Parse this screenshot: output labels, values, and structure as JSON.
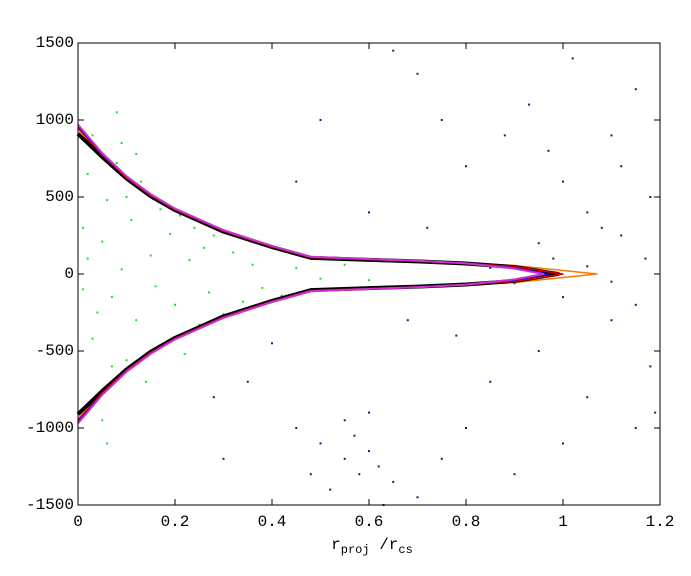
{
  "chart_data": {
    "type": "scatter",
    "x_label": [
      "r",
      "proj",
      " /r",
      "cs"
    ],
    "xlim": [
      0,
      1.2
    ],
    "xticks": [
      0,
      0.2,
      0.4,
      0.6,
      0.8,
      1,
      1.2
    ],
    "ylim": [
      -1500,
      1500
    ],
    "yticks": [
      -1500,
      -1000,
      -500,
      0,
      500,
      1000,
      1500
    ],
    "series": [
      {
        "type": "scatter",
        "color": "#22dd22",
        "x": [
          0.02,
          0.03,
          0.05,
          0.04,
          0.06,
          0.07,
          0.08,
          0.09,
          0.1,
          0.11,
          0.12,
          0.13,
          0.14,
          0.15,
          0.16,
          0.17,
          0.18,
          0.19,
          0.2,
          0.21,
          0.22,
          0.23,
          0.24,
          0.25,
          0.26,
          0.27,
          0.28,
          0.3,
          0.32,
          0.34,
          0.36,
          0.38,
          0.4,
          0.42,
          0.45,
          0.5,
          0.55,
          0.6,
          0.01,
          0.02,
          0.03,
          0.05,
          0.07,
          0.09,
          0.12,
          0.01,
          0.04,
          0.06,
          0.08,
          0.1
        ],
        "values": [
          650,
          -420,
          210,
          -800,
          480,
          -150,
          720,
          30,
          -560,
          350,
          -300,
          600,
          -700,
          120,
          -80,
          420,
          -450,
          260,
          -200,
          380,
          -520,
          90,
          300,
          -330,
          170,
          -120,
          250,
          -260,
          140,
          -180,
          60,
          -90,
          170,
          -140,
          40,
          -30,
          60,
          -40,
          -100,
          100,
          900,
          -950,
          -600,
          850,
          780,
          300,
          -250,
          -1100,
          1050,
          500
        ]
      },
      {
        "type": "scatter",
        "color": "#1a1a80",
        "x": [
          0.55,
          0.58,
          0.6,
          0.52,
          0.62,
          0.57,
          0.65,
          0.5,
          0.7,
          0.48,
          0.6,
          0.63,
          0.55,
          0.45,
          0.75,
          0.8,
          0.85,
          0.9,
          0.95,
          1.0,
          1.05,
          1.1,
          1.15,
          1.18,
          0.35,
          0.4,
          0.3,
          0.28,
          0.95,
          1.0,
          0.98,
          1.05,
          1.1,
          1.12,
          1.15,
          0.9,
          0.85,
          1.0,
          1.05,
          1.1,
          1.15,
          1.08,
          0.97,
          0.93,
          0.88,
          1.18,
          1.12,
          1.02,
          0.8,
          0.75,
          0.7,
          0.65,
          0.6,
          0.45,
          0.5,
          0.72,
          0.68,
          0.78,
          1.19,
          1.17
        ],
        "values": [
          -1200,
          -1300,
          -1150,
          -1400,
          -1250,
          -1050,
          -1350,
          -1100,
          -1450,
          -1300,
          -900,
          -1500,
          -950,
          -1000,
          -1200,
          -1000,
          -700,
          -1300,
          -500,
          -1100,
          -800,
          -300,
          -1000,
          -600,
          -700,
          -450,
          -1200,
          -800,
          200,
          -150,
          100,
          50,
          -50,
          250,
          -200,
          -60,
          40,
          600,
          400,
          900,
          1200,
          300,
          800,
          1100,
          900,
          500,
          700,
          1400,
          700,
          1000,
          1300,
          1450,
          400,
          600,
          1000,
          300,
          -300,
          -400,
          -900,
          100
        ]
      },
      {
        "type": "line",
        "color": "#ff7700",
        "width": 1.5,
        "x": [
          0,
          0.05,
          0.1,
          0.15,
          0.2,
          0.3,
          0.4,
          0.48,
          0.6,
          0.7,
          0.8,
          0.9,
          1.07,
          0.9,
          0.8,
          0.7,
          0.6,
          0.48,
          0.4,
          0.3,
          0.2,
          0.15,
          0.1,
          0.05,
          0
        ],
        "values": [
          940,
          775,
          628,
          512,
          420,
          280,
          178,
          108,
          95,
          86,
          72,
          55,
          0,
          -55,
          -72,
          -86,
          -95,
          -108,
          -178,
          -280,
          -420,
          -512,
          -628,
          -775,
          -940
        ]
      },
      {
        "type": "line",
        "color": "#000000",
        "width": 4,
        "x": [
          0,
          0.05,
          0.1,
          0.15,
          0.2,
          0.3,
          0.4,
          0.48,
          0.6,
          0.7,
          0.8,
          0.9,
          0.99,
          0.9,
          0.8,
          0.7,
          0.6,
          0.48,
          0.4,
          0.3,
          0.2,
          0.15,
          0.1,
          0.05,
          0
        ],
        "values": [
          910,
          760,
          620,
          505,
          415,
          275,
          175,
          105,
          92,
          82,
          68,
          45,
          0,
          -45,
          -68,
          -82,
          -92,
          -105,
          -175,
          -275,
          -415,
          -505,
          -620,
          -760,
          -910
        ]
      },
      {
        "type": "line",
        "color": "#e00000",
        "width": 1.5,
        "x": [
          0,
          0.05,
          0.1,
          0.15,
          0.2,
          0.3,
          0.4,
          0.48,
          0.6,
          0.7,
          0.8,
          0.9,
          1,
          0.9,
          0.8,
          0.7,
          0.6,
          0.48,
          0.4,
          0.3,
          0.2,
          0.15,
          0.1,
          0.05,
          0
        ],
        "values": [
          950,
          772,
          625,
          510,
          418,
          278,
          177,
          107,
          94,
          84,
          70,
          48,
          0,
          -48,
          -70,
          -84,
          -94,
          -107,
          -177,
          -278,
          -418,
          -510,
          -625,
          -772,
          -950
        ]
      },
      {
        "type": "line",
        "color": "#0000ff",
        "width": 1.5,
        "x": [
          0,
          0.05,
          0.1,
          0.15,
          0.2,
          0.3,
          0.4,
          0.48,
          0.6,
          0.7,
          0.8,
          0.9,
          0.97,
          0.9,
          0.8,
          0.7,
          0.6,
          0.48,
          0.4,
          0.3,
          0.2,
          0.15,
          0.1,
          0.05,
          0
        ],
        "values": [
          960,
          780,
          632,
          515,
          422,
          282,
          180,
          110,
          96,
          85,
          70,
          40,
          0,
          -40,
          -70,
          -85,
          -96,
          -110,
          -180,
          -282,
          -422,
          -515,
          -632,
          -780,
          -960
        ]
      },
      {
        "type": "line",
        "color": "#cc33cc",
        "width": 2,
        "x": [
          0,
          0.05,
          0.1,
          0.15,
          0.2,
          0.3,
          0.4,
          0.48,
          0.6,
          0.7,
          0.8,
          0.9,
          0.96,
          0.9,
          0.8,
          0.7,
          0.6,
          0.48,
          0.4,
          0.3,
          0.2,
          0.15,
          0.1,
          0.05,
          0
        ],
        "values": [
          970,
          785,
          635,
          518,
          425,
          285,
          182,
          112,
          97,
          86,
          69,
          35,
          0,
          -35,
          -69,
          -86,
          -97,
          -112,
          -182,
          -285,
          -425,
          -518,
          -635,
          -785,
          -970
        ]
      }
    ]
  }
}
